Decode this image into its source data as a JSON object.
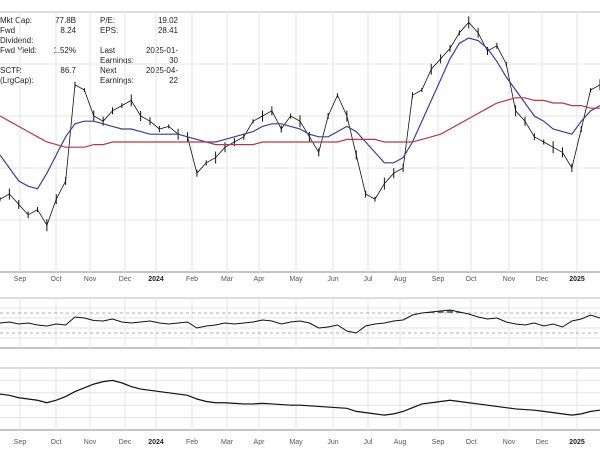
{
  "stats": {
    "rows": [
      {
        "k1": "Mkt Cap:",
        "v1": "77.8B",
        "k2": "P/E:",
        "v2": "19.02"
      },
      {
        "k1": "Fwd Dividend:",
        "v1": "8.24",
        "k2": "EPS:",
        "v2": "28.41"
      },
      {
        "k1": "Fwd Yield:",
        "v1": "1.52%",
        "k2": "Last Earnings:",
        "v2": "2025-01-30"
      },
      {
        "k1": "SCTR (LrgCap):",
        "v1": "86.7",
        "k2": "Next Earnings:",
        "v2": "2025-04-22"
      }
    ]
  },
  "x_axis": {
    "labels": [
      {
        "text": "Sep",
        "bold": false
      },
      {
        "text": "Oct",
        "bold": false
      },
      {
        "text": "Nov",
        "bold": false
      },
      {
        "text": "Dec",
        "bold": false
      },
      {
        "text": "2024",
        "bold": true
      },
      {
        "text": "Feb",
        "bold": false
      },
      {
        "text": "Mar",
        "bold": false
      },
      {
        "text": "Apr",
        "bold": false
      },
      {
        "text": "May",
        "bold": false
      },
      {
        "text": "Jun",
        "bold": false
      },
      {
        "text": "Jul",
        "bold": false
      },
      {
        "text": "Aug",
        "bold": false
      },
      {
        "text": "Sep",
        "bold": false
      },
      {
        "text": "Oct",
        "bold": false
      },
      {
        "text": "Nov",
        "bold": false
      },
      {
        "text": "Dec",
        "bold": false
      },
      {
        "text": "2025",
        "bold": true
      }
    ]
  },
  "colors": {
    "price": "#111111",
    "ma_short": "#3b3f9a",
    "ma_long": "#b23a48",
    "grid": "#e3e3e3",
    "overbought_fill": "#4f8a4f",
    "oversold_fill": "#b5573a"
  },
  "chart_data": [
    {
      "type": "line",
      "panel": "price",
      "ylim": [
        0,
        100
      ],
      "series": [
        {
          "values": [
            28,
            30,
            26,
            22,
            24,
            18,
            28,
            35,
            72,
            70,
            60,
            58,
            62,
            64,
            66,
            60,
            58,
            55,
            56,
            53,
            52,
            38,
            42,
            44,
            48,
            50,
            52,
            58,
            60,
            62,
            55,
            60,
            58,
            52,
            46,
            60,
            68,
            60,
            45,
            30,
            28,
            34,
            38,
            40,
            68,
            70,
            78,
            82,
            86,
            92,
            96,
            92,
            85,
            87,
            80,
            62,
            58,
            52,
            50,
            48,
            46,
            40,
            55,
            70,
            72
          ]
        },
        {
          "values": [
            45,
            40,
            35,
            33,
            32,
            38,
            45,
            52,
            57,
            58,
            58,
            57,
            56,
            55,
            55,
            54,
            53,
            53,
            53,
            53,
            52,
            51,
            50,
            50,
            51,
            52,
            53,
            54,
            56,
            57,
            57,
            56,
            55,
            53,
            52,
            52,
            54,
            56,
            54,
            50,
            46,
            42,
            42,
            44,
            50,
            58,
            66,
            74,
            82,
            88,
            90,
            89,
            86,
            81,
            75,
            70,
            65,
            60,
            58,
            55,
            54,
            53,
            58,
            62,
            64
          ]
        },
        {
          "values": [
            60,
            58,
            56,
            54,
            52,
            50,
            49,
            48,
            48,
            48,
            49,
            49,
            50,
            50,
            50,
            50,
            50,
            50,
            50,
            50,
            50,
            50,
            50,
            49,
            49,
            49,
            49,
            49,
            50,
            50,
            50,
            50,
            50,
            50,
            50,
            50,
            50,
            51,
            51,
            51,
            51,
            50,
            50,
            50,
            50,
            51,
            52,
            53,
            55,
            57,
            59,
            61,
            63,
            65,
            66,
            67,
            67,
            66,
            66,
            65,
            65,
            64,
            64,
            63,
            63
          ]
        }
      ]
    },
    {
      "type": "line",
      "panel": "momentum",
      "ylim": [
        0,
        100
      ],
      "series": [
        {
          "values": [
            50,
            52,
            48,
            50,
            46,
            44,
            48,
            46,
            62,
            60,
            55,
            54,
            58,
            52,
            50,
            52,
            54,
            50,
            48,
            50,
            52,
            40,
            44,
            46,
            50,
            48,
            50,
            52,
            56,
            54,
            48,
            52,
            54,
            50,
            40,
            42,
            46,
            34,
            30,
            44,
            48,
            50,
            54,
            56,
            66,
            70,
            72,
            74,
            76,
            72,
            68,
            62,
            58,
            60,
            52,
            48,
            46,
            50,
            44,
            48,
            42,
            54,
            58,
            66,
            60
          ]
        }
      ]
    },
    {
      "type": "line",
      "panel": "relative_strength",
      "ylim": [
        0,
        100
      ],
      "series": [
        {
          "values": [
            58,
            56,
            52,
            50,
            48,
            44,
            48,
            54,
            62,
            68,
            74,
            78,
            80,
            76,
            70,
            66,
            64,
            62,
            60,
            58,
            56,
            50,
            46,
            44,
            44,
            43,
            42,
            42,
            43,
            42,
            41,
            40,
            40,
            39,
            38,
            37,
            36,
            35,
            30,
            28,
            26,
            24,
            26,
            30,
            36,
            42,
            44,
            46,
            48,
            46,
            44,
            42,
            40,
            38,
            36,
            34,
            33,
            32,
            30,
            28,
            26,
            24,
            26,
            30,
            32
          ]
        }
      ]
    }
  ]
}
